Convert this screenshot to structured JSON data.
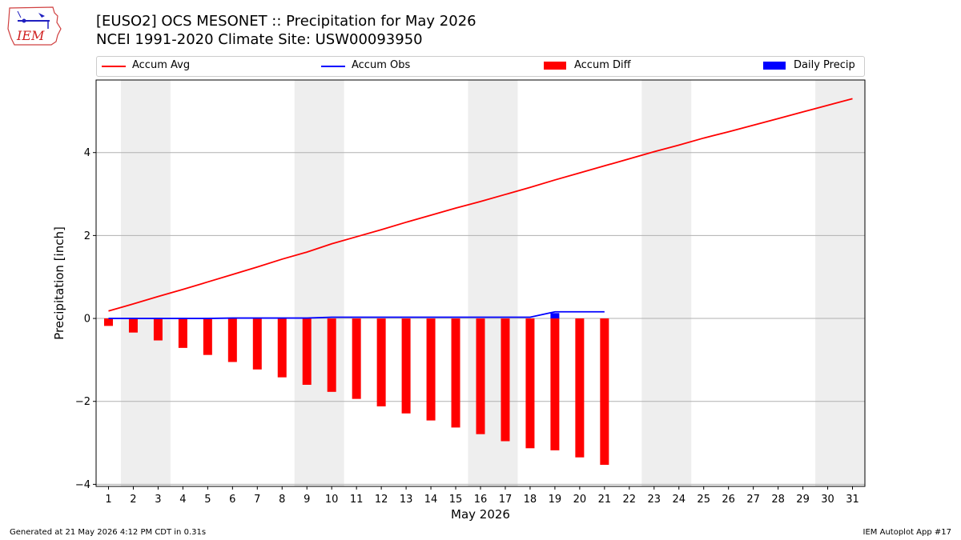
{
  "header": {
    "logo_text": "IEM",
    "title_line1": "[EUSO2] OCS MESONET :: Precipitation for May 2026",
    "title_line2": "NCEI 1991-2020 Climate Site: USW00093950"
  },
  "legend": {
    "items": [
      {
        "label": "Accum Avg",
        "color": "#ff0000",
        "kind": "line"
      },
      {
        "label": "Accum Obs",
        "color": "#0000ff",
        "kind": "line"
      },
      {
        "label": "Accum Diff",
        "color": "#ff0000",
        "kind": "bar"
      },
      {
        "label": "Daily Precip",
        "color": "#0000ff",
        "kind": "bar"
      }
    ]
  },
  "footer": {
    "left": "Generated at 21 May 2026 4:12 PM CDT in 0.31s",
    "right": "IEM Autoplot App #17"
  },
  "chart_data": {
    "type": "bar",
    "xlabel": "May 2026",
    "ylabel": "Precipitation [inch]",
    "xlim": [
      0.5,
      31.5
    ],
    "ylim": [
      -4.05,
      5.75
    ],
    "yticks": [
      -4,
      -2,
      0,
      2,
      4
    ],
    "ytick_labels": [
      "−4",
      "−2",
      "0",
      "2",
      "4"
    ],
    "x": [
      1,
      2,
      3,
      4,
      5,
      6,
      7,
      8,
      9,
      10,
      11,
      12,
      13,
      14,
      15,
      16,
      17,
      18,
      19,
      20,
      21,
      22,
      23,
      24,
      25,
      26,
      27,
      28,
      29,
      30,
      31
    ],
    "weekend_shading": [
      [
        1.5,
        3.5
      ],
      [
        8.5,
        10.5
      ],
      [
        15.5,
        17.5
      ],
      [
        22.5,
        24.5
      ],
      [
        29.5,
        31.5
      ]
    ],
    "grid": "horizontal",
    "series": [
      {
        "name": "Accum Avg",
        "type": "line",
        "color": "#ff0000",
        "x": [
          1,
          2,
          3,
          4,
          5,
          6,
          7,
          8,
          9,
          10,
          11,
          12,
          13,
          14,
          15,
          16,
          17,
          18,
          19,
          20,
          21,
          22,
          23,
          24,
          25,
          26,
          27,
          28,
          29,
          30,
          31
        ],
        "values": [
          0.18,
          0.35,
          0.53,
          0.7,
          0.88,
          1.06,
          1.24,
          1.43,
          1.6,
          1.8,
          1.97,
          2.14,
          2.32,
          2.49,
          2.66,
          2.82,
          2.99,
          3.16,
          3.34,
          3.51,
          3.68,
          3.85,
          4.02,
          4.18,
          4.35,
          4.5,
          4.66,
          4.82,
          4.98,
          5.14,
          5.3
        ]
      },
      {
        "name": "Accum Obs",
        "type": "line",
        "color": "#0000ff",
        "x": [
          1,
          2,
          3,
          4,
          5,
          6,
          7,
          8,
          9,
          10,
          11,
          12,
          13,
          14,
          15,
          16,
          17,
          18,
          19,
          20,
          21
        ],
        "values": [
          0,
          0,
          0,
          0,
          0,
          0.01,
          0.01,
          0.01,
          0.01,
          0.03,
          0.03,
          0.03,
          0.03,
          0.03,
          0.03,
          0.03,
          0.03,
          0.03,
          0.16,
          0.16,
          0.16
        ]
      },
      {
        "name": "Accum Diff",
        "type": "bar",
        "color": "#ff0000",
        "x": [
          1,
          2,
          3,
          4,
          5,
          6,
          7,
          8,
          9,
          10,
          11,
          12,
          13,
          14,
          15,
          16,
          17,
          18,
          19,
          20,
          21
        ],
        "values": [
          -0.18,
          -0.34,
          -0.53,
          -0.71,
          -0.88,
          -1.05,
          -1.23,
          -1.42,
          -1.6,
          -1.77,
          -1.94,
          -2.12,
          -2.29,
          -2.46,
          -2.63,
          -2.79,
          -2.96,
          -3.13,
          -3.18,
          -3.35,
          -3.53
        ]
      },
      {
        "name": "Daily Precip",
        "type": "bar",
        "color": "#0000ff",
        "x": [
          19
        ],
        "values": [
          0.13
        ]
      }
    ]
  }
}
